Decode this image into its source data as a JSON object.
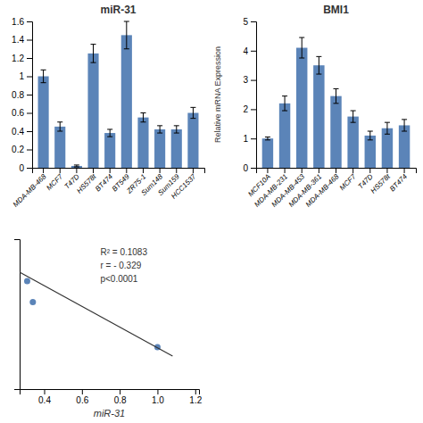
{
  "chart_data": [
    {
      "type": "bar",
      "title": "miR-31",
      "categories": [
        "MDA-MB-468",
        "MCF7",
        "T47D",
        "HS578t",
        "BT474",
        "BT549",
        "ZR75-1",
        "Sum148",
        "Sum159",
        "HCC1537"
      ],
      "values": [
        1.0,
        0.45,
        0.02,
        1.25,
        0.38,
        1.45,
        0.55,
        0.42,
        0.42,
        0.6
      ],
      "errors": [
        0.07,
        0.05,
        0.01,
        0.1,
        0.04,
        0.15,
        0.05,
        0.04,
        0.04,
        0.06
      ],
      "color": "#5b84b8",
      "ylim": [
        0,
        1.6
      ],
      "yticks": [
        0,
        0.2,
        0.4,
        0.6,
        0.8,
        1,
        1.2,
        1.4,
        1.6
      ]
    },
    {
      "type": "bar",
      "title": "BMI1",
      "y_label": "Relative mRNA Expression",
      "categories": [
        "MCF10A",
        "MDA-MB-231",
        "MDA-MB-453",
        "MDA-MB-361",
        "MDA-MB-468",
        "MCF7",
        "T47D",
        "HS578t",
        "BT474"
      ],
      "values": [
        1.0,
        2.2,
        4.1,
        3.5,
        2.45,
        1.75,
        1.1,
        1.35,
        1.45
      ],
      "errors": [
        0.05,
        0.25,
        0.35,
        0.3,
        0.25,
        0.2,
        0.15,
        0.2,
        0.2
      ],
      "color": "#5b84b8",
      "ylim": [
        0,
        5
      ],
      "yticks": [
        0,
        1,
        2,
        3,
        4,
        5
      ]
    },
    {
      "type": "scatter",
      "x_label": "miR-31",
      "series": [
        {
          "type": "scatter",
          "color": "#5b84b8",
          "x": [
            0.31,
            0.34,
            1.0
          ],
          "values": [
            0.72,
            0.58,
            0.28
          ]
        },
        {
          "type": "line",
          "color": "#333333",
          "x": [
            0.27,
            1.08
          ],
          "values": [
            0.78,
            0.22
          ]
        }
      ],
      "xlim": [
        0.27,
        1.22
      ],
      "xticks": [
        0.4,
        0.6,
        0.8,
        {
          "value": 1.0,
          "label": "1.0"
        },
        1.2
      ],
      "ylim": [
        0,
        1
      ],
      "tick_labels": "x",
      "annotations": [
        "R² = 0.1083",
        "r = - 0.329",
        "p<0.0001"
      ]
    }
  ]
}
